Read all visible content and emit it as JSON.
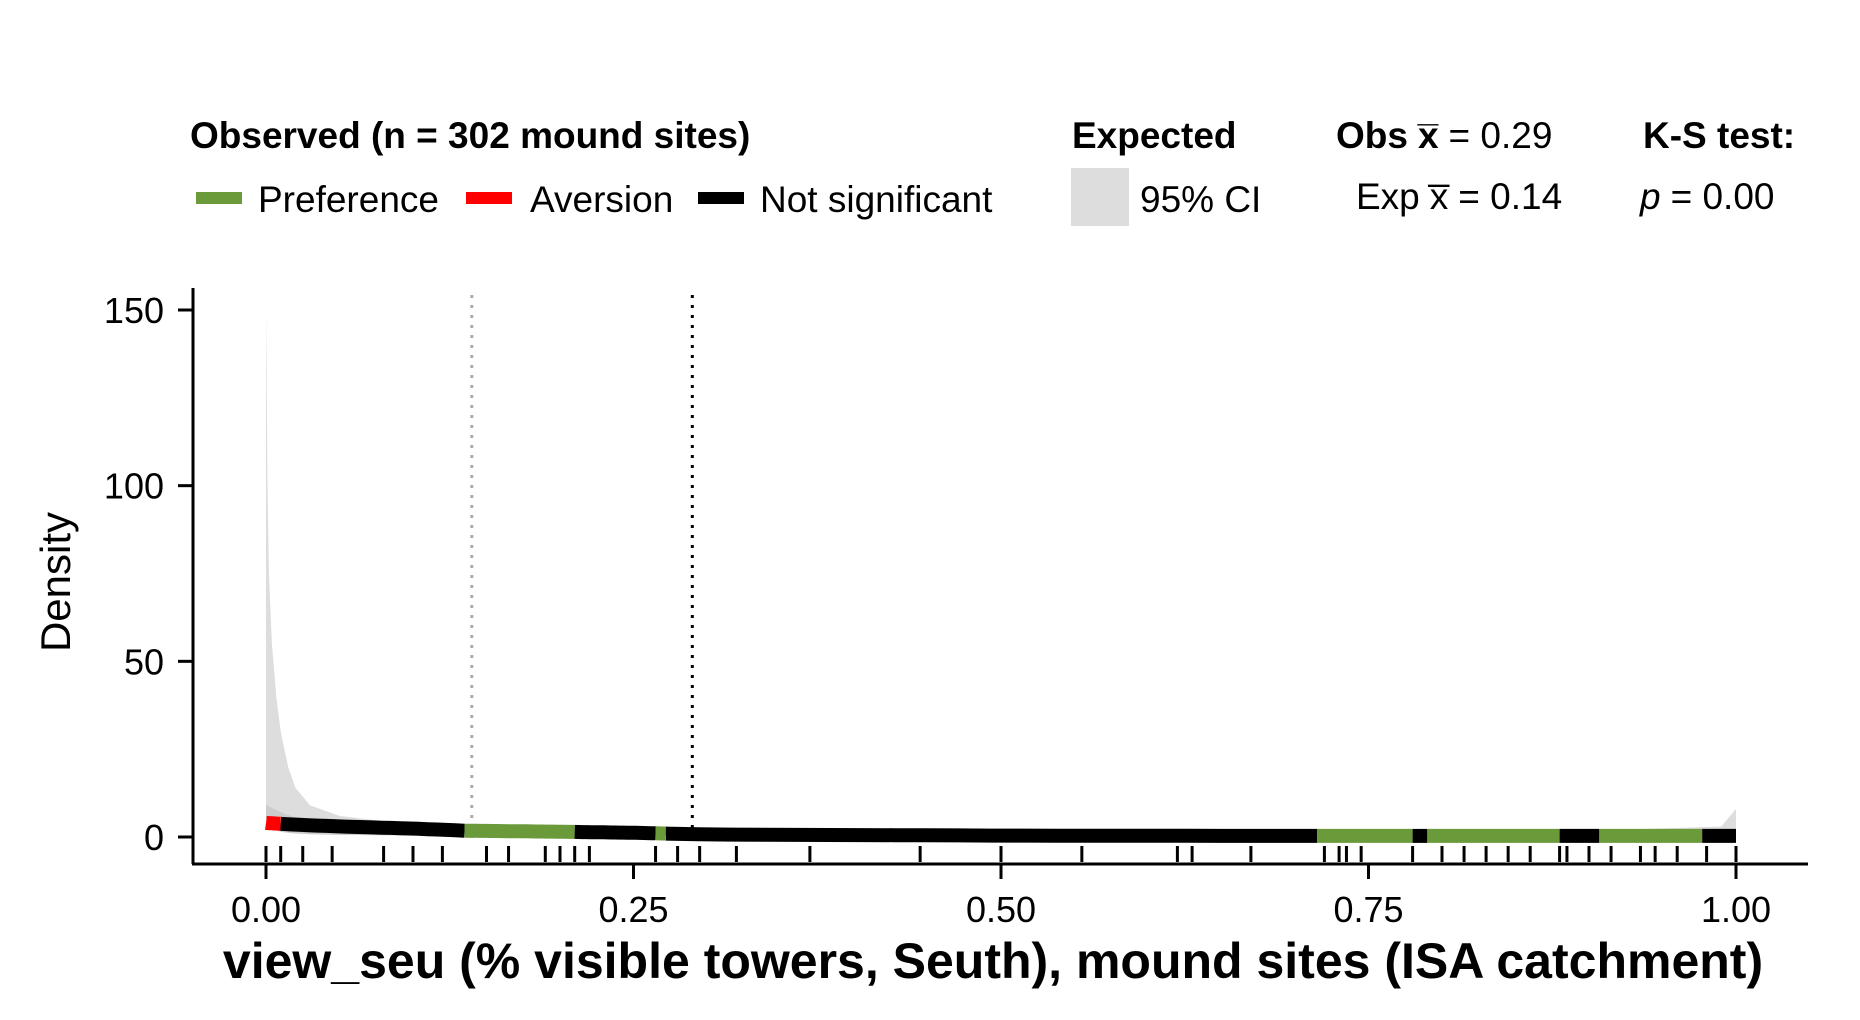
{
  "chart_data": {
    "type": "area",
    "xlabel": "view_seu (% visible towers, Seuth), mound sites (ISA catchment)",
    "ylabel": "Density",
    "xlim": [
      0,
      1
    ],
    "ylim": [
      0,
      150
    ],
    "x_ticks": [
      "0.00",
      "0.25",
      "0.50",
      "0.75",
      "1.00"
    ],
    "y_ticks": [
      "0",
      "50",
      "100",
      "150"
    ],
    "x_tick_values": [
      0,
      0.25,
      0.5,
      0.75,
      1
    ],
    "y_tick_values": [
      0,
      50,
      100,
      150
    ],
    "legend": {
      "observed_title": "Observed (n = 302 mound sites)",
      "preference_label": "Preference",
      "aversion_label": "Aversion",
      "not_significant_label": "Not significant",
      "expected_title": "Expected",
      "ci_label": "95% CI",
      "obs_mean_label": "Obs",
      "obs_mean_value": "= 0.29",
      "exp_mean_label": "Exp",
      "exp_mean_value": "= 0.14",
      "xbar_symbol": "x̅",
      "ks_title": "K-S test:",
      "ks_p_symbol": "p",
      "ks_p_value": "= 0.00"
    },
    "colors": {
      "preference": "#6a9a3a",
      "aversion": "#ff0000",
      "not_significant": "#000000",
      "ci_band": "#dddddd",
      "expected_mean_line": "#aaaaaa",
      "observed_mean_line": "#000000"
    },
    "observed_mean": 0.29,
    "expected_mean": 0.14,
    "ci_band": {
      "x": [
        0,
        0.0005,
        0.001,
        0.002,
        0.004,
        0.007,
        0.01,
        0.015,
        0.02,
        0.03,
        0.05,
        0.08,
        0.12,
        0.16,
        0.22,
        0.3,
        0.5,
        0.7,
        0.9,
        0.99,
        1.0
      ],
      "upper": [
        150,
        130,
        100,
        75,
        55,
        40,
        30,
        20,
        14,
        9,
        6,
        4.5,
        3.5,
        2.8,
        2.3,
        2.0,
        1.8,
        1.8,
        1.8,
        3,
        8
      ],
      "lower": [
        5,
        4,
        3.5,
        3,
        2.5,
        2,
        1.5,
        1.2,
        1,
        0.8,
        0.6,
        0.5,
        0.4,
        0.3,
        0.25,
        0.2,
        0.2,
        0.2,
        0.2,
        0.3,
        0.5
      ]
    },
    "observed_segments": [
      {
        "from": 0.0,
        "to": 0.01,
        "status": "aversion"
      },
      {
        "from": 0.01,
        "to": 0.135,
        "status": "not_significant"
      },
      {
        "from": 0.135,
        "to": 0.21,
        "status": "preference"
      },
      {
        "from": 0.21,
        "to": 0.265,
        "status": "not_significant"
      },
      {
        "from": 0.265,
        "to": 0.272,
        "status": "preference"
      },
      {
        "from": 0.272,
        "to": 0.715,
        "status": "not_significant"
      },
      {
        "from": 0.715,
        "to": 0.78,
        "status": "preference"
      },
      {
        "from": 0.78,
        "to": 0.79,
        "status": "not_significant"
      },
      {
        "from": 0.79,
        "to": 0.88,
        "status": "preference"
      },
      {
        "from": 0.88,
        "to": 0.907,
        "status": "not_significant"
      },
      {
        "from": 0.907,
        "to": 0.977,
        "status": "preference"
      },
      {
        "from": 0.977,
        "to": 1.0,
        "status": "not_significant"
      }
    ],
    "observed_density": {
      "x": [
        0,
        0.02,
        0.05,
        0.1,
        0.135,
        0.2,
        0.25,
        0.3,
        0.5,
        0.7,
        0.75,
        0.8,
        0.85,
        0.9,
        0.95,
        1.0
      ],
      "y": [
        4,
        3.5,
        3,
        2.4,
        1.8,
        1.5,
        1.2,
        0.7,
        0.4,
        0.3,
        0.3,
        0.3,
        0.3,
        0.3,
        0.3,
        0.3
      ]
    },
    "rug": [
      0.0,
      0.01,
      0.025,
      0.045,
      0.08,
      0.1,
      0.12,
      0.15,
      0.165,
      0.19,
      0.2,
      0.21,
      0.22,
      0.265,
      0.28,
      0.295,
      0.32,
      0.37,
      0.445,
      0.5,
      0.555,
      0.62,
      0.63,
      0.67,
      0.72,
      0.73,
      0.735,
      0.745,
      0.78,
      0.8,
      0.815,
      0.83,
      0.845,
      0.86,
      0.88,
      0.885,
      0.9,
      0.915,
      0.935,
      0.945,
      0.96,
      0.98,
      1.0
    ]
  }
}
